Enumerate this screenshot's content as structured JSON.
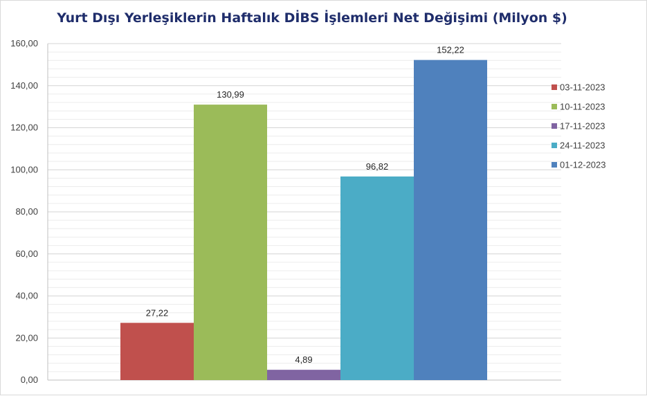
{
  "chart_data": {
    "type": "bar",
    "title": "Yurt Dışı Yerleşiklerin Haftalık DİBS İşlemleri Net Değişimi (Milyon $)",
    "xlabel": "",
    "ylabel": "",
    "ylim": [
      0,
      160
    ],
    "yticks": [
      "0,00",
      "20,00",
      "40,00",
      "60,00",
      "80,00",
      "100,00",
      "120,00",
      "140,00",
      "160,00"
    ],
    "grid": true,
    "legend_position": "right",
    "series": [
      {
        "name": "03-11-2023",
        "value": 27.22,
        "label": "27,22",
        "color": "#c0504d"
      },
      {
        "name": "10-11-2023",
        "value": 130.99,
        "label": "130,99",
        "color": "#9bbb59"
      },
      {
        "name": "17-11-2023",
        "value": 4.89,
        "label": "4,89",
        "color": "#8064a2"
      },
      {
        "name": "24-11-2023",
        "value": 96.82,
        "label": "96,82",
        "color": "#4bacc6"
      },
      {
        "name": "01-12-2023",
        "value": 152.22,
        "label": "152,22",
        "color": "#4f81bd"
      }
    ]
  }
}
